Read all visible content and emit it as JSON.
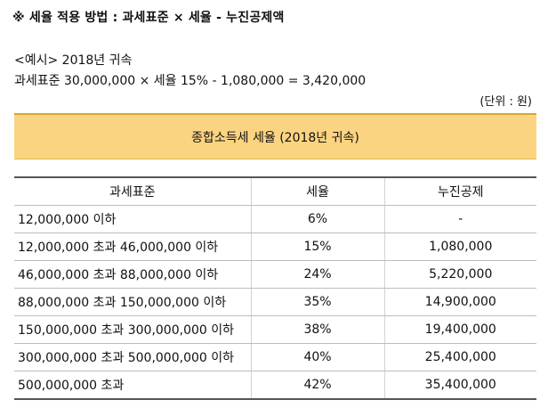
{
  "heading": "※ 세율 적용 방법 : 과세표준 × 세율 - 누진공제액",
  "example": {
    "title": "<예시> 2018년 귀속",
    "formula": "과세표준 30,000,000 × 세율 15% - 1,080,000 = 3,420,000"
  },
  "unit_note": "(단위 : 원)",
  "table_title": "종합소득세 세율 (2018년 귀속)",
  "table": {
    "headers": [
      "과세표준",
      "세율",
      "누진공제"
    ],
    "rows": [
      {
        "bracket": "12,000,000 이하",
        "rate": "6%",
        "deduction": "-"
      },
      {
        "bracket": "12,000,000 초과 46,000,000 이하",
        "rate": "15%",
        "deduction": "1,080,000"
      },
      {
        "bracket": "46,000,000 초과 88,000,000 이하",
        "rate": "24%",
        "deduction": "5,220,000"
      },
      {
        "bracket": "88,000,000 초과 150,000,000 이하",
        "rate": "35%",
        "deduction": "14,900,000"
      },
      {
        "bracket": "150,000,000 초과 300,000,000 이하",
        "rate": "38%",
        "deduction": "19,400,000"
      },
      {
        "bracket": "300,000,000 초과 500,000,000 이하",
        "rate": "40%",
        "deduction": "25,400,000"
      },
      {
        "bracket": "500,000,000 초과",
        "rate": "42%",
        "deduction": "35,400,000"
      }
    ]
  },
  "colors": {
    "banner_background": "#fbd481",
    "banner_border": "#d9a52b"
  }
}
